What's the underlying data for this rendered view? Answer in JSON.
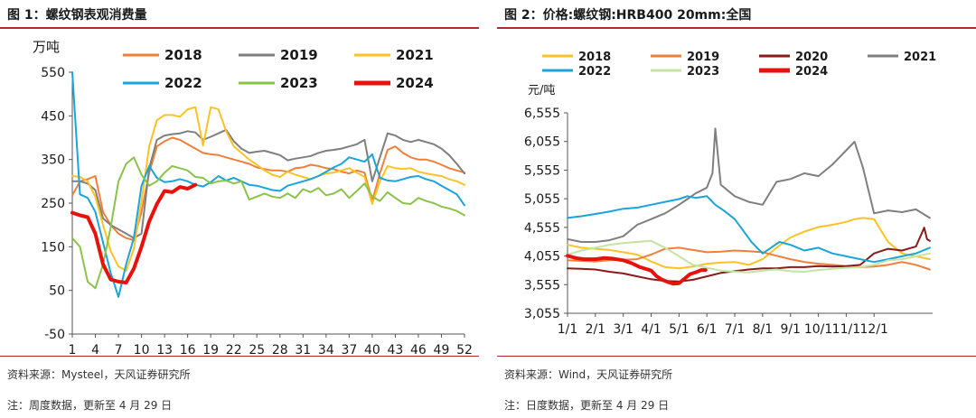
{
  "left": {
    "title": "图 1：螺纹钢表观消费量",
    "source": "资料来源：Mysteel，天风证券研究所",
    "update": "注：周度数据，更新至 4 月 29 日",
    "chart_data": {
      "type": "line",
      "title": "",
      "ylabel": "万吨",
      "xlabel": "",
      "ylim": [
        -50,
        550
      ],
      "yticks": [
        -50,
        50,
        150,
        250,
        350,
        450,
        550
      ],
      "xlim": [
        1,
        52
      ],
      "xticks": [
        1,
        4,
        7,
        10,
        13,
        16,
        19,
        22,
        25,
        28,
        31,
        34,
        37,
        40,
        43,
        46,
        49,
        52
      ],
      "grid": false,
      "legend": "top",
      "series": [
        {
          "name": "2018",
          "color": "#f07f3c",
          "width": 2,
          "x": [
            1,
            2,
            3,
            4,
            5,
            6,
            7,
            8,
            9,
            10,
            11,
            12,
            13,
            14,
            15,
            16,
            17,
            18,
            19,
            20,
            21,
            22,
            23,
            24,
            25,
            26,
            27,
            28,
            29,
            30,
            31,
            32,
            33,
            34,
            35,
            36,
            37,
            38,
            39,
            40,
            41,
            42,
            43,
            44,
            45,
            46,
            47,
            48,
            49,
            50,
            51,
            52
          ],
          "y": [
            268,
            300,
            305,
            312,
            230,
            200,
            180,
            170,
            165,
            230,
            320,
            380,
            392,
            400,
            395,
            385,
            375,
            365,
            362,
            360,
            355,
            350,
            345,
            340,
            332,
            328,
            325,
            325,
            322,
            330,
            332,
            338,
            335,
            330,
            328,
            322,
            318,
            325,
            320,
            255,
            318,
            372,
            380,
            365,
            355,
            350,
            350,
            345,
            338,
            330,
            325,
            320
          ]
        },
        {
          "name": "2019",
          "color": "#7f7f7f",
          "width": 2,
          "x": [
            1,
            2,
            3,
            4,
            5,
            6,
            7,
            8,
            9,
            10,
            11,
            12,
            13,
            14,
            15,
            16,
            17,
            18,
            19,
            20,
            21,
            22,
            23,
            24,
            25,
            26,
            27,
            28,
            29,
            30,
            31,
            32,
            33,
            34,
            35,
            36,
            37,
            38,
            39,
            40,
            41,
            42,
            43,
            44,
            45,
            46,
            47,
            48,
            49,
            50,
            51,
            52
          ],
          "y": [
            300,
            300,
            295,
            280,
            215,
            200,
            190,
            180,
            170,
            180,
            330,
            395,
            405,
            408,
            410,
            415,
            412,
            395,
            402,
            410,
            418,
            392,
            375,
            365,
            368,
            370,
            365,
            360,
            348,
            352,
            355,
            358,
            365,
            370,
            372,
            375,
            380,
            385,
            395,
            300,
            355,
            410,
            405,
            395,
            390,
            395,
            390,
            385,
            375,
            360,
            340,
            318
          ]
        },
        {
          "name": "2021",
          "color": "#fcc226",
          "width": 2,
          "x": [
            1,
            2,
            3,
            4,
            5,
            6,
            7,
            8,
            9,
            10,
            11,
            12,
            13,
            14,
            15,
            16,
            17,
            18,
            19,
            20,
            21,
            22,
            23,
            24,
            25,
            26,
            27,
            28,
            29,
            30,
            31,
            32,
            33,
            34,
            35,
            36,
            37,
            38,
            39,
            40,
            41,
            42,
            43,
            44,
            45,
            46,
            47,
            48,
            49,
            50,
            51,
            52
          ],
          "y": [
            312,
            310,
            300,
            265,
            200,
            140,
            105,
            95,
            145,
            255,
            380,
            440,
            452,
            452,
            448,
            465,
            470,
            382,
            470,
            465,
            415,
            380,
            365,
            350,
            338,
            325,
            315,
            310,
            322,
            315,
            310,
            305,
            312,
            318,
            320,
            325,
            330,
            320,
            310,
            248,
            300,
            335,
            330,
            328,
            330,
            322,
            318,
            315,
            312,
            305,
            300,
            292
          ]
        },
        {
          "name": "2022",
          "color": "#1aa4dc",
          "width": 2,
          "x": [
            1,
            2,
            3,
            4,
            5,
            6,
            7,
            8,
            9,
            10,
            11,
            12,
            13,
            14,
            15,
            16,
            17,
            18,
            19,
            20,
            21,
            22,
            23,
            24,
            25,
            26,
            27,
            28,
            29,
            30,
            31,
            32,
            33,
            34,
            35,
            36,
            37,
            38,
            39,
            40,
            41,
            42,
            43,
            44,
            45,
            46,
            47,
            48,
            49,
            50,
            51,
            52
          ],
          "y": [
            550,
            270,
            262,
            230,
            160,
            90,
            35,
            110,
            170,
            290,
            335,
            308,
            298,
            300,
            305,
            300,
            292,
            288,
            298,
            312,
            302,
            308,
            300,
            292,
            290,
            285,
            280,
            278,
            290,
            295,
            300,
            305,
            312,
            322,
            332,
            340,
            355,
            350,
            345,
            362,
            308,
            302,
            300,
            305,
            310,
            312,
            305,
            300,
            290,
            280,
            270,
            245
          ]
        },
        {
          "name": "2023",
          "color": "#8bc34a",
          "width": 2,
          "x": [
            1,
            2,
            3,
            4,
            5,
            6,
            7,
            8,
            9,
            10,
            11,
            12,
            13,
            14,
            15,
            16,
            17,
            18,
            19,
            20,
            21,
            22,
            23,
            24,
            25,
            26,
            27,
            28,
            29,
            30,
            31,
            32,
            33,
            34,
            35,
            36,
            37,
            38,
            39,
            40,
            41,
            42,
            43,
            44,
            45,
            46,
            47,
            48,
            49,
            50,
            51,
            52
          ],
          "y": [
            170,
            150,
            70,
            55,
            110,
            195,
            300,
            340,
            355,
            315,
            290,
            300,
            320,
            335,
            330,
            325,
            310,
            308,
            295,
            300,
            302,
            295,
            300,
            258,
            265,
            272,
            265,
            262,
            272,
            262,
            282,
            275,
            285,
            268,
            272,
            282,
            262,
            278,
            295,
            265,
            255,
            275,
            262,
            250,
            248,
            262,
            255,
            250,
            242,
            238,
            232,
            222
          ]
        },
        {
          "name": "2024",
          "color": "#e8120c",
          "width": 4,
          "x": [
            1,
            2,
            3,
            4,
            5,
            6,
            7,
            8,
            9,
            10,
            11,
            12,
            13,
            14,
            15,
            16,
            17
          ],
          "y": [
            228,
            222,
            218,
            180,
            110,
            75,
            70,
            68,
            100,
            150,
            208,
            248,
            278,
            275,
            287,
            283,
            292
          ]
        }
      ]
    }
  },
  "right": {
    "title": "图 2：价格:螺纹钢:HRB400 20mm:全国",
    "source": "资料来源：Wind，天风证券研究所",
    "update": "注：日度数据，更新至 4 月 29 日",
    "chart_data": {
      "type": "line",
      "title": "",
      "ylabel": "元/吨",
      "xlabel": "",
      "ylim": [
        3055,
        6555
      ],
      "yticks": [
        3055,
        3555,
        4055,
        4555,
        5055,
        5555,
        6055,
        6555
      ],
      "ytick_labels": [
        "3,055",
        "3,555",
        "4,055",
        "4,555",
        "5,055",
        "5,555",
        "6,055",
        "6,555"
      ],
      "xlim": [
        0,
        13.1
      ],
      "xticks": [
        0,
        1,
        2,
        3,
        4,
        5,
        6,
        7,
        8,
        9,
        10,
        11
      ],
      "xtick_labels": [
        "1/1",
        "2/1",
        "3/1",
        "4/1",
        "5/1",
        "6/1",
        "7/1",
        "8/1",
        "9/1",
        "10/1",
        "11/1",
        "12/1"
      ],
      "x_unit": "months since 1/1",
      "grid": false,
      "legend": "top",
      "series": [
        {
          "name": "2018",
          "color": "#fcc226",
          "width": 2,
          "x": [
            0,
            0.5,
            1,
            1.5,
            2,
            2.5,
            3,
            3.5,
            4,
            4.5,
            5,
            5.5,
            6,
            6.5,
            7,
            7.5,
            8,
            8.5,
            9,
            9.5,
            10,
            10.3,
            10.6,
            11,
            11.5,
            12,
            12.5,
            13
          ],
          "y": [
            4250,
            4200,
            4180,
            4160,
            4120,
            4080,
            3960,
            3860,
            3840,
            3870,
            3920,
            3940,
            3950,
            3900,
            4000,
            4200,
            4380,
            4480,
            4560,
            4600,
            4650,
            4700,
            4720,
            4700,
            4300,
            4100,
            4050,
            4000
          ]
        },
        {
          "name": "2019",
          "color": "#f07f3c",
          "width": 2,
          "x": [
            0,
            0.5,
            1,
            1.5,
            2,
            2.5,
            3,
            3.5,
            4,
            4.5,
            5,
            5.5,
            6,
            6.5,
            7,
            7.5,
            8,
            8.5,
            9,
            9.5,
            10,
            10.5,
            11,
            11.5,
            12,
            12.5,
            13
          ],
          "y": [
            3980,
            3970,
            3960,
            3980,
            3990,
            4000,
            4080,
            4180,
            4200,
            4160,
            4120,
            4130,
            4150,
            4140,
            4120,
            4060,
            4000,
            3950,
            3920,
            3900,
            3880,
            3860,
            3870,
            3900,
            3950,
            3900,
            3820
          ]
        },
        {
          "name": "2020",
          "color": "#8b1a1a",
          "width": 2,
          "x": [
            0,
            0.5,
            1,
            1.5,
            2,
            2.5,
            3,
            3.5,
            4,
            4.5,
            5,
            5.5,
            6,
            6.5,
            7,
            7.5,
            8,
            8.5,
            9,
            9.5,
            10,
            10.5,
            11,
            11.5,
            12,
            12.5,
            12.8,
            12.9,
            13
          ],
          "y": [
            3840,
            3830,
            3820,
            3780,
            3750,
            3700,
            3650,
            3620,
            3610,
            3640,
            3700,
            3760,
            3790,
            3820,
            3840,
            3840,
            3860,
            3860,
            3880,
            3870,
            3880,
            3900,
            4100,
            4180,
            4150,
            4220,
            4550,
            4350,
            4320
          ]
        },
        {
          "name": "2021",
          "color": "#7f7f7f",
          "width": 2,
          "x": [
            0,
            0.5,
            1,
            1.5,
            2,
            2.5,
            3,
            3.5,
            4,
            4.3,
            4.6,
            5,
            5.2,
            5.3,
            5.5,
            6,
            6.5,
            7,
            7.5,
            8,
            8.5,
            9,
            9.5,
            10,
            10.3,
            10.6,
            11,
            11.5,
            12,
            12.5,
            13
          ],
          "y": [
            4350,
            4300,
            4300,
            4330,
            4400,
            4600,
            4700,
            4800,
            4950,
            5050,
            5150,
            5250,
            5500,
            6280,
            5300,
            5100,
            5000,
            4950,
            5350,
            5400,
            5500,
            5450,
            5650,
            5900,
            6050,
            5600,
            4800,
            4850,
            4820,
            4870,
            4720
          ]
        },
        {
          "name": "2022",
          "color": "#1aa4dc",
          "width": 2,
          "x": [
            0,
            0.5,
            1,
            1.5,
            2,
            2.5,
            3,
            3.5,
            4,
            4.3,
            4.6,
            5,
            5.3,
            5.6,
            6,
            6.3,
            6.6,
            7,
            7.3,
            7.6,
            8,
            8.5,
            9,
            9.5,
            10,
            10.5,
            11,
            11.5,
            12,
            12.5,
            13
          ],
          "y": [
            4720,
            4750,
            4790,
            4830,
            4880,
            4900,
            4950,
            5000,
            5050,
            5100,
            5070,
            5100,
            4950,
            4850,
            4700,
            4500,
            4300,
            4100,
            4200,
            4300,
            4250,
            4150,
            4200,
            4100,
            4050,
            4000,
            3950,
            4000,
            4050,
            4100,
            4200
          ]
        },
        {
          "name": "2023",
          "color": "#c5e3a3",
          "width": 2,
          "x": [
            0,
            0.5,
            1,
            1.5,
            2,
            2.5,
            3,
            3.5,
            4,
            4.5,
            5,
            5.5,
            6,
            6.5,
            7,
            7.5,
            8,
            8.5,
            9,
            9.5,
            10,
            10.5,
            11,
            11.5,
            12,
            12.5,
            13
          ],
          "y": [
            4080,
            4150,
            4200,
            4250,
            4280,
            4300,
            4320,
            4200,
            4050,
            3900,
            3850,
            3800,
            3780,
            3770,
            3800,
            3820,
            3790,
            3780,
            3810,
            3830,
            3850,
            3860,
            3900,
            3980,
            4000,
            4050,
            4100
          ]
        },
        {
          "name": "2024",
          "color": "#e8120c",
          "width": 4,
          "x": [
            0,
            0.3,
            0.6,
            1,
            1.3,
            1.6,
            2,
            2.3,
            2.6,
            3,
            3.2,
            3.4,
            3.6,
            3.8,
            4,
            4.2,
            4.4,
            4.6,
            4.8,
            4.95
          ],
          "y": [
            4060,
            4020,
            4000,
            4000,
            4020,
            4010,
            3980,
            3930,
            3860,
            3800,
            3700,
            3640,
            3600,
            3570,
            3580,
            3660,
            3740,
            3770,
            3810,
            3810
          ]
        }
      ]
    }
  }
}
